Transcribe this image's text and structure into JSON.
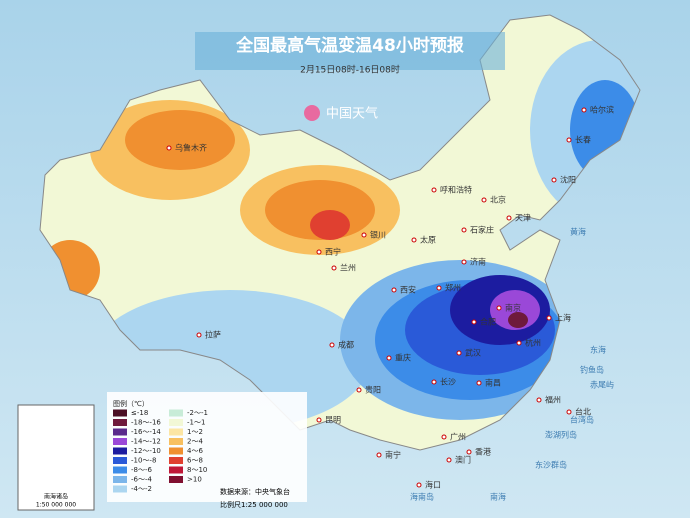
{
  "header": {
    "title": "全国最高气温变温48小时预报",
    "subtitle": "2月15日08时-16日08时",
    "logo": "中国天气"
  },
  "legend": {
    "title": "图例（℃）",
    "items": [
      {
        "label": "≤-18",
        "color": "#4a0f24"
      },
      {
        "label": "-18～-16",
        "color": "#6e1a3c"
      },
      {
        "label": "-16～-14",
        "color": "#5a2a8c"
      },
      {
        "label": "-14～-12",
        "color": "#9a48d8"
      },
      {
        "label": "-12～-10",
        "color": "#1c1ca0"
      },
      {
        "label": "-10～-8",
        "color": "#2a5ad8"
      },
      {
        "label": "-8～-6",
        "color": "#3c8ce8"
      },
      {
        "label": "-6～-4",
        "color": "#7cb6ea"
      },
      {
        "label": "-4～-2",
        "color": "#acd6f0"
      },
      {
        "label": "-2～-1",
        "color": "#c8ecd8"
      },
      {
        "label": "-1～1",
        "color": "#f2f8d6"
      },
      {
        "label": "1～2",
        "color": "#fce6a4"
      },
      {
        "label": "2～4",
        "color": "#f8c060"
      },
      {
        "label": "4～6",
        "color": "#f09030"
      },
      {
        "label": "6～8",
        "color": "#e04030"
      },
      {
        "label": "8～10",
        "color": "#c01838"
      },
      {
        "label": ">10",
        "color": "#801030"
      }
    ]
  },
  "cities": [
    "乌鲁木齐",
    "哈尔滨",
    "长春",
    "沈阳",
    "呼和浩特",
    "北京",
    "天津",
    "石家庄",
    "银川",
    "太原",
    "济南",
    "西宁",
    "兰州",
    "郑州",
    "西安",
    "南京",
    "合肥",
    "上海",
    "拉萨",
    "成都",
    "武汉",
    "杭州",
    "重庆",
    "长沙",
    "南昌",
    "贵阳",
    "福州",
    "昆明",
    "台北",
    "南宁",
    "广州",
    "香港",
    "澳门",
    "海口"
  ],
  "seas": [
    "黄海",
    "东海",
    "南海",
    "钓鱼岛",
    "赤尾屿",
    "台湾岛",
    "澎湖列岛",
    "东沙群岛",
    "海南岛"
  ],
  "inset": {
    "label": "南海诸岛",
    "scale": "1:50 000 000"
  },
  "footer": {
    "source": "数据来源：中央气象台",
    "scale": "比例尺1:25 000 000"
  }
}
